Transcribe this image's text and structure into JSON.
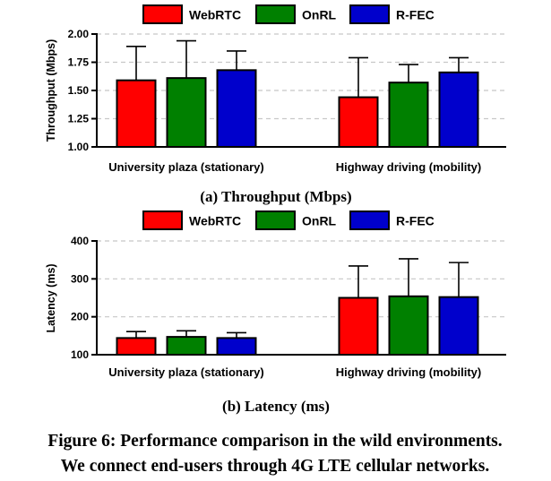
{
  "legend": [
    "WebRTC",
    "OnRL",
    "R-FEC"
  ],
  "colors": {
    "WebRTC": "#ff0000",
    "OnRL": "#008000",
    "R-FEC": "#0000cc"
  },
  "chart_data": [
    {
      "type": "bar",
      "subcaption": "(a) Throughput (Mbps)",
      "ylabel": "Throughput (Mbps)",
      "xlabel": "",
      "ylim": [
        1.0,
        2.0
      ],
      "yticks": [
        "1.00",
        "1.25",
        "1.50",
        "1.75",
        "2.00"
      ],
      "grid": "horizontal-dashed",
      "legend_position": "top",
      "categories": [
        "University plaza (stationary)",
        "Highway driving (mobility)"
      ],
      "series": [
        {
          "name": "WebRTC",
          "values": [
            1.59,
            1.44
          ],
          "error_upper": [
            1.89,
            1.79
          ]
        },
        {
          "name": "OnRL",
          "values": [
            1.61,
            1.57
          ],
          "error_upper": [
            1.94,
            1.73
          ]
        },
        {
          "name": "R-FEC",
          "values": [
            1.68,
            1.66
          ],
          "error_upper": [
            1.85,
            1.79
          ]
        }
      ]
    },
    {
      "type": "bar",
      "subcaption": "(b) Latency (ms)",
      "ylabel": "Latency (ms)",
      "xlabel": "",
      "ylim": [
        100,
        400
      ],
      "yticks": [
        "100",
        "200",
        "300",
        "400"
      ],
      "grid": "horizontal-dashed",
      "legend_position": "top",
      "categories": [
        "University plaza (stationary)",
        "Highway driving (mobility)"
      ],
      "series": [
        {
          "name": "WebRTC",
          "values": [
            144,
            250
          ],
          "error_upper": [
            161,
            334
          ]
        },
        {
          "name": "OnRL",
          "values": [
            147,
            254
          ],
          "error_upper": [
            163,
            353
          ]
        },
        {
          "name": "R-FEC",
          "values": [
            144,
            252
          ],
          "error_upper": [
            158,
            343
          ]
        }
      ]
    }
  ],
  "caption": [
    "Figure 6: Performance comparison in the wild environments.",
    "We connect end-users through 4G LTE cellular networks."
  ]
}
